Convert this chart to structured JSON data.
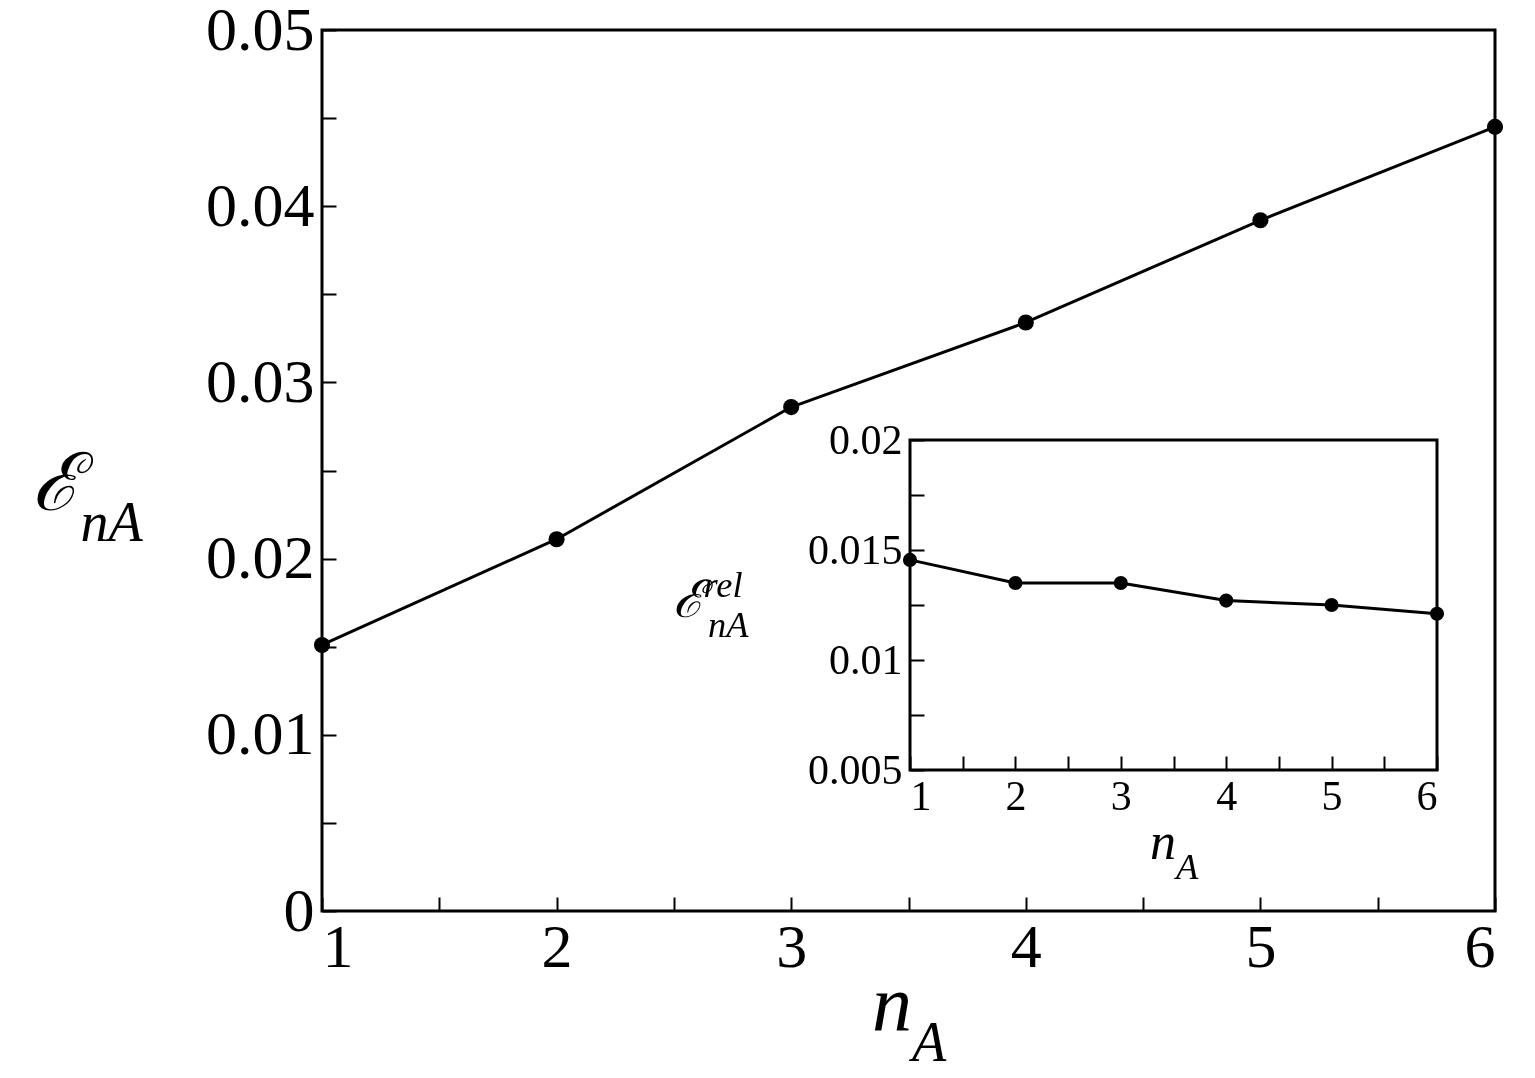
{
  "chart_data": [
    {
      "type": "line",
      "xlabel": "n$_{A}$",
      "ylabel": "ℰ$_{nA}$",
      "x": [
        1,
        2,
        3,
        4,
        5,
        6
      ],
      "marker": "circle",
      "line_style": "solid",
      "series": [
        {
          "color": "#000000",
          "values": [
            0.0151,
            0.0211,
            0.0286,
            0.0334,
            0.0392,
            0.0445
          ]
        }
      ],
      "xlim": [
        1,
        6
      ],
      "ylim": [
        0,
        0.05
      ],
      "xticks": [
        1,
        {
          "value": 1.5,
          "label": null
        },
        2,
        {
          "value": 2.5,
          "label": null
        },
        3,
        {
          "value": 3.5,
          "label": null
        },
        4,
        {
          "value": 4.5,
          "label": null
        },
        5,
        {
          "value": 5.5,
          "label": null
        },
        6
      ],
      "yticks": [
        0,
        {
          "value": 0.005,
          "label": null
        },
        0.01,
        {
          "value": 0.015,
          "label": null
        },
        0.02,
        {
          "value": 0.025,
          "label": null
        },
        0.03,
        {
          "value": 0.035,
          "label": null
        },
        0.04,
        {
          "value": 0.045,
          "label": null
        },
        0.05
      ]
    },
    {
      "type": "line",
      "xlabel": "n$_{A}$",
      "ylabel": "ℰ$^{rel}$$_{nA}$",
      "x": [
        1,
        2,
        3,
        4,
        5,
        6
      ],
      "marker": "circle",
      "line_style": "solid",
      "series": [
        {
          "color": "#000000",
          "values": [
            0.01455,
            0.0135,
            0.0135,
            0.0127,
            0.0125,
            0.0121
          ]
        }
      ],
      "xlim": [
        1,
        6
      ],
      "ylim": [
        0.005,
        0.02
      ],
      "xticks": [
        1,
        {
          "value": 1.5,
          "label": null
        },
        2,
        {
          "value": 2.5,
          "label": null
        },
        3,
        {
          "value": 3.5,
          "label": null
        },
        4,
        {
          "value": 4.5,
          "label": null
        },
        5,
        {
          "value": 5.5,
          "label": null
        },
        6
      ],
      "yticks": [
        0.005,
        {
          "value": 0.0075,
          "label": null
        },
        0.01,
        {
          "value": 0.0125,
          "label": null
        },
        0.015,
        {
          "value": 0.0175,
          "label": null
        },
        0.02
      ]
    }
  ]
}
